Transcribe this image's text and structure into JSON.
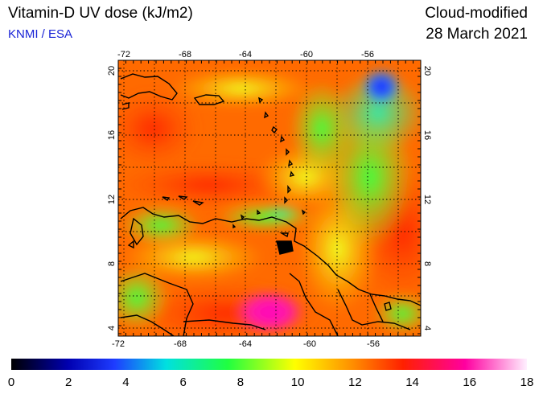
{
  "header": {
    "title": "Vitamin-D UV dose (kJ/m2)",
    "source": "KNMI / ESA",
    "product": "Cloud-modified",
    "date": "28 March 2021"
  },
  "map": {
    "lon_ticks": [
      "-72",
      "-68",
      "-64",
      "-60",
      "-56"
    ],
    "lat_ticks": [
      "20",
      "16",
      "12",
      "8",
      "4"
    ],
    "lon_range": [
      -73,
      -53
    ],
    "lat_range": [
      3.5,
      20.5
    ]
  },
  "colorbar": {
    "ticks": [
      "0",
      "2",
      "4",
      "6",
      "8",
      "10",
      "12",
      "14",
      "16",
      "18"
    ],
    "min": 0,
    "max": 18
  },
  "colors": {
    "subtitle": "#1a24d6"
  }
}
